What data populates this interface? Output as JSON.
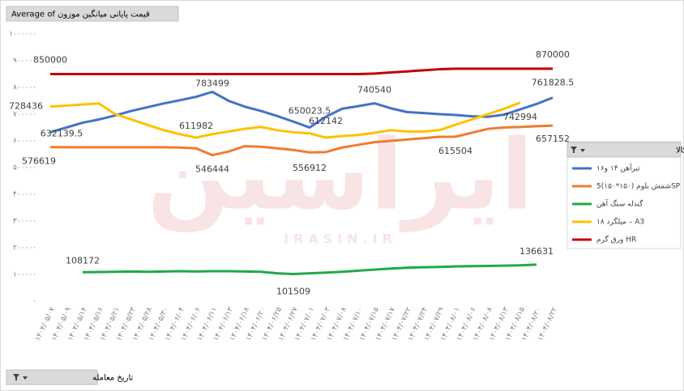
{
  "chart_data": {
    "type": "line",
    "field_button": "Average of قیمت پایانی میانگین موزون",
    "axis_button": "تاریخ معامله",
    "legend_title": "نام کالا",
    "legend": "right",
    "watermark": [
      "ایراسین",
      "IRASIN.IR"
    ],
    "categories": [
      "۱۴۰۴/۰۵/۰۷",
      "۱۴۰۴/۰۵/۰۹",
      "۱۴۰۴/۰۵/۱۴",
      "۱۴۰۴/۰۵/۱۶",
      "۱۴۰۴/۰۵/۲۱",
      "۱۴۰۴/۰۵/۲۳",
      "۱۴۰۴/۰۵/۲۸",
      "۱۴۰۴/۰۵/۳۰",
      "۱۴۰۴/۰۶/۰۴",
      "۱۴۰۴/۰۶/۰۶",
      "۱۴۰۴/۰۶/۱۱",
      "۱۴۰۴/۰۶/۱۳",
      "۱۴۰۴/۰۶/۱۸",
      "۱۴۰۴/۰۶/۲۰",
      "۱۴۰۴/۰۶/۲۵",
      "۱۴۰۴/۰۶/۲۷",
      "۱۴۰۴/۰۷/۰۱",
      "۱۴۰۴/۰۷/۰۳",
      "۱۴۰۴/۰۷/۰۸",
      "۱۴۰۴/۰۷/۱۰",
      "۱۴۰۴/۰۷/۱۵",
      "۱۴۰۴/۰۷/۱۷",
      "۱۴۰۴/۰۷/۲۲",
      "۱۴۰۴/۰۷/۲۴",
      "۱۴۰۴/۰۷/۲۹",
      "۱۴۰۴/۰۸/۰۱",
      "۱۴۰۴/۰۸/۰۶",
      "۱۴۰۴/۰۸/۰۸",
      "۱۴۰۴/۰۸/۱۳",
      "۱۴۰۴/۰۸/۱۵",
      "۱۴۰۴/۰۸/۲۰",
      "۱۴۰۴/۰۸/۲۲"
    ],
    "ylim": [
      0,
      1000000
    ],
    "yticks": [
      {
        "value": 0,
        "label": "۰"
      },
      {
        "value": 100000,
        "label": "۱۰۰۰۰۰"
      },
      {
        "value": 200000,
        "label": "۲۰۰۰۰۰"
      },
      {
        "value": 300000,
        "label": "۳۰۰۰۰۰"
      },
      {
        "value": 400000,
        "label": "۴۰۰۰۰۰"
      },
      {
        "value": 500000,
        "label": "۵۰۰۰۰۰"
      },
      {
        "value": 600000,
        "label": "۶۰۰۰۰۰"
      },
      {
        "value": 700000,
        "label": "۷۰۰۰۰۰"
      },
      {
        "value": 800000,
        "label": "۸۰۰۰۰۰"
      },
      {
        "value": 900000,
        "label": "۹۰۰۰۰۰"
      },
      {
        "value": 1000000,
        "label": "۱۰۰۰۰۰۰"
      }
    ],
    "grid": false,
    "series": [
      {
        "name": "تیرآهن ۱۴ و۱۶",
        "color": "#4472c4",
        "labeled": [
          0,
          10,
          16,
          20,
          31
        ],
        "values": [
          632139.5,
          650000,
          668000,
          680000,
          695000,
          712000,
          726000,
          740000,
          752000,
          765000,
          783499,
          750000,
          728000,
          712000,
          693000,
          672000,
          650023.5,
          690000,
          720000,
          730000,
          740540,
          722000,
          708000,
          704000,
          700000,
          697000,
          692000,
          690000,
          698000,
          718000,
          738000,
          761828.5
        ]
      },
      {
        "name": "شمش بلوم (۱۵۰*۱۵۰)5SP",
        "color": "#ed7d31",
        "labeled": [
          0,
          10,
          16,
          25,
          31
        ],
        "values": [
          576619,
          576000,
          576000,
          576000,
          576000,
          576000,
          576000,
          576000,
          575000,
          572000,
          546444,
          560000,
          580000,
          578000,
          572000,
          566000,
          556912,
          558000,
          575000,
          585000,
          595000,
          600000,
          605000,
          610000,
          615000,
          615504,
          630000,
          645000,
          650000,
          652000,
          655000,
          657152
        ]
      },
      {
        "name": "گندله سنگ آهن",
        "color": "#1faa4a",
        "labeled": [
          2,
          15,
          30
        ],
        "values": [
          null,
          null,
          108172,
          109000,
          110000,
          111000,
          110000,
          111000,
          112000,
          111000,
          112000,
          112000,
          111000,
          110000,
          104000,
          101509,
          104000,
          107000,
          110000,
          114000,
          118000,
          122000,
          125000,
          127000,
          128000,
          130000,
          131000,
          132000,
          133000,
          134000,
          136631,
          null
        ]
      },
      {
        "name": "میلگرد ۱۸ – A3",
        "color": "#ffc000",
        "labeled": [
          0,
          9,
          17,
          29
        ],
        "values": [
          728436,
          732000,
          736000,
          740000,
          700000,
          680000,
          660000,
          640000,
          625000,
          611982,
          625000,
          635000,
          645000,
          652000,
          640000,
          632000,
          628000,
          612142,
          618000,
          622000,
          630000,
          640000,
          635000,
          635000,
          640000,
          660000,
          680000,
          700000,
          720000,
          742994,
          null,
          null
        ]
      },
      {
        "name": "ورق گرم HR",
        "color": "#c00000",
        "labeled": [
          0,
          31
        ],
        "values": [
          850000,
          850000,
          850000,
          850000,
          850000,
          850000,
          850000,
          850000,
          850000,
          850000,
          850000,
          850000,
          850000,
          850000,
          850000,
          850000,
          850000,
          850000,
          850000,
          850000,
          852000,
          856000,
          860000,
          864000,
          868000,
          870000,
          870000,
          870000,
          870000,
          870000,
          870000,
          870000
        ]
      }
    ]
  }
}
